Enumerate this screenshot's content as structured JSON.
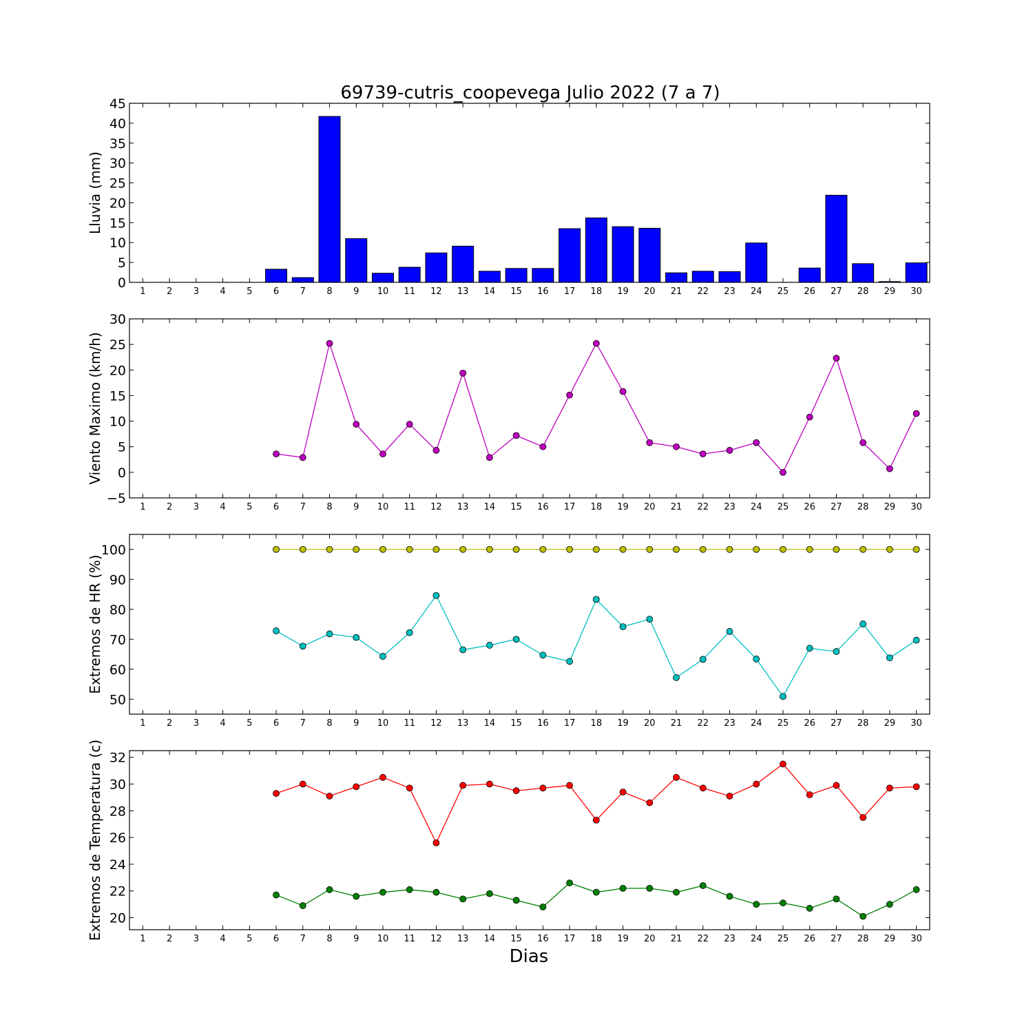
{
  "chart_data": [
    {
      "type": "bar",
      "title": "69739-cutris_coopevega Julio 2022  (7 a 7)",
      "ylabel": "Lluvia (mm)",
      "xlabel": "",
      "ylim": [
        0,
        45
      ],
      "yticks": [
        0,
        5,
        10,
        15,
        20,
        25,
        30,
        35,
        40,
        45
      ],
      "categories": [
        "1",
        "2",
        "3",
        "4",
        "5",
        "6",
        "7",
        "8",
        "9",
        "10",
        "11",
        "12",
        "13",
        "14",
        "15",
        "16",
        "17",
        "18",
        "19",
        "20",
        "21",
        "22",
        "23",
        "24",
        "25",
        "26",
        "27",
        "28",
        "29",
        "30"
      ],
      "values": [
        null,
        null,
        null,
        null,
        null,
        3.3,
        1.2,
        41.7,
        11.0,
        2.3,
        3.8,
        7.4,
        9.1,
        2.8,
        3.5,
        3.5,
        13.5,
        16.2,
        14.0,
        13.6,
        2.4,
        2.8,
        2.7,
        9.9,
        0.0,
        3.6,
        21.9,
        4.7,
        0.2,
        4.9
      ],
      "color": "#0000ff"
    },
    {
      "type": "line",
      "ylabel": "Viento Maximo (km/h)",
      "xlabel": "",
      "ylim": [
        -5,
        30
      ],
      "yticks": [
        -5,
        0,
        5,
        10,
        15,
        20,
        25,
        30
      ],
      "categories": [
        "1",
        "2",
        "3",
        "4",
        "5",
        "6",
        "7",
        "8",
        "9",
        "10",
        "11",
        "12",
        "13",
        "14",
        "15",
        "16",
        "17",
        "18",
        "19",
        "20",
        "21",
        "22",
        "23",
        "24",
        "25",
        "26",
        "27",
        "28",
        "29",
        "30"
      ],
      "series": [
        {
          "color": "#bf00bf",
          "values": [
            null,
            null,
            null,
            null,
            null,
            3.6,
            2.9,
            25.2,
            9.4,
            3.6,
            9.4,
            4.3,
            19.4,
            2.9,
            7.2,
            5.0,
            15.1,
            25.2,
            15.8,
            5.8,
            5.0,
            3.6,
            4.3,
            5.8,
            0.0,
            10.8,
            22.3,
            5.8,
            0.7,
            11.5
          ]
        }
      ]
    },
    {
      "type": "line",
      "ylabel": "Extremos de HR (%)",
      "xlabel": "",
      "ylim": [
        45,
        105
      ],
      "yticks": [
        50,
        60,
        70,
        80,
        90,
        100
      ],
      "categories": [
        "1",
        "2",
        "3",
        "4",
        "5",
        "6",
        "7",
        "8",
        "9",
        "10",
        "11",
        "12",
        "13",
        "14",
        "15",
        "16",
        "17",
        "18",
        "19",
        "20",
        "21",
        "22",
        "23",
        "24",
        "25",
        "26",
        "27",
        "28",
        "29",
        "30"
      ],
      "series": [
        {
          "color": "#bfbf00",
          "values": [
            null,
            null,
            null,
            null,
            null,
            100,
            100,
            100,
            100,
            100,
            100,
            100,
            100,
            100,
            100,
            100,
            100,
            100,
            100,
            100,
            100,
            100,
            100,
            100,
            100,
            100,
            100,
            100,
            100,
            100
          ]
        },
        {
          "color": "#00bfbf",
          "values": [
            null,
            null,
            null,
            null,
            null,
            72.8,
            67.7,
            71.8,
            70.6,
            64.3,
            72.2,
            84.6,
            66.5,
            68.0,
            70.0,
            64.7,
            62.6,
            83.3,
            74.2,
            76.7,
            57.2,
            63.3,
            72.6,
            63.4,
            50.9,
            67.0,
            65.9,
            75.1,
            63.8,
            69.7
          ]
        }
      ]
    },
    {
      "type": "line",
      "ylabel": "Extremos de Temperatura (c)",
      "xlabel": "Dias",
      "ylim": [
        19.1,
        32.5
      ],
      "yticks": [
        20,
        22,
        24,
        26,
        28,
        30,
        32
      ],
      "categories": [
        "1",
        "2",
        "3",
        "4",
        "5",
        "6",
        "7",
        "8",
        "9",
        "10",
        "11",
        "12",
        "13",
        "14",
        "15",
        "16",
        "17",
        "18",
        "19",
        "20",
        "21",
        "22",
        "23",
        "24",
        "25",
        "26",
        "27",
        "28",
        "29",
        "30"
      ],
      "series": [
        {
          "color": "#ff0000",
          "values": [
            null,
            null,
            null,
            null,
            null,
            29.3,
            30.0,
            29.1,
            29.8,
            30.5,
            29.7,
            25.6,
            29.9,
            30.0,
            29.5,
            29.7,
            29.9,
            27.3,
            29.4,
            28.6,
            30.5,
            29.7,
            29.1,
            30.0,
            31.5,
            29.2,
            29.9,
            27.5,
            29.7,
            29.8
          ]
        },
        {
          "color": "#008000",
          "values": [
            null,
            null,
            null,
            null,
            null,
            21.7,
            20.9,
            22.1,
            21.6,
            21.9,
            22.1,
            21.9,
            21.4,
            21.8,
            21.3,
            20.8,
            22.6,
            21.9,
            22.2,
            22.2,
            21.9,
            22.4,
            21.6,
            21.0,
            21.1,
            20.7,
            21.4,
            20.1,
            21.0,
            22.1
          ]
        }
      ]
    }
  ]
}
